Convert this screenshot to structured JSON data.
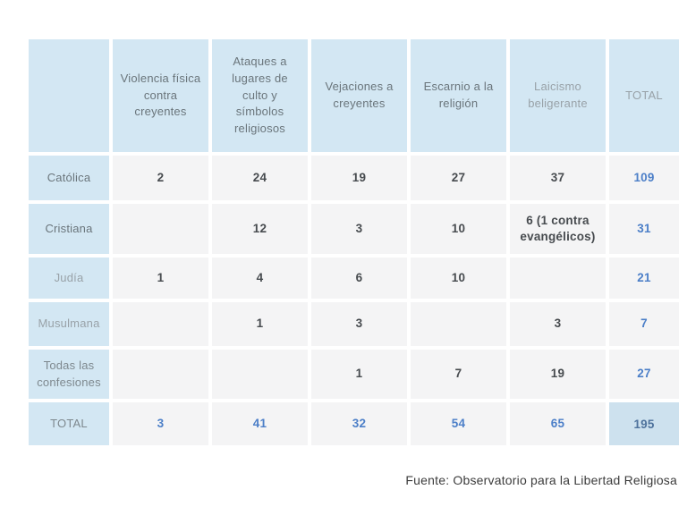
{
  "table": {
    "columns": [
      "",
      "Violencia física contra creyentes",
      "Ataques a lugares de culto y símbolos religiosos",
      "Vejaciones a creyentes",
      "Escarnio a la religión",
      "Laicismo beligerante",
      "TOTAL"
    ],
    "rows": [
      {
        "label": "Católica",
        "values": [
          "2",
          "24",
          "19",
          "27",
          "37"
        ],
        "total": "109"
      },
      {
        "label": "Cristiana",
        "values": [
          "",
          "12",
          "3",
          "10",
          "6 (1 contra evangélicos)"
        ],
        "total": "31"
      },
      {
        "label": "Judía",
        "values": [
          "1",
          "4",
          "6",
          "10",
          ""
        ],
        "total": "21"
      },
      {
        "label": "Musulmana",
        "values": [
          "",
          "1",
          "3",
          "",
          "3"
        ],
        "total": "7"
      },
      {
        "label": "Todas las confesiones",
        "values": [
          "",
          "",
          "1",
          "7",
          "19"
        ],
        "total": "27"
      },
      {
        "label": "TOTAL",
        "values": [
          "3",
          "41",
          "32",
          "54",
          "65"
        ],
        "total": "195"
      }
    ]
  },
  "footer": {
    "source": "Fuente: Observatorio para la Libertad Religiosa"
  },
  "colors": {
    "header_bg": "#d3e7f3",
    "cell_bg": "#f4f4f5",
    "grand_total_bg": "#cde1ee",
    "total_text": "#4c7fc8",
    "grand_total_text": "#4e729c",
    "header_text": "#6a757b",
    "value_text": "#474b4f"
  }
}
